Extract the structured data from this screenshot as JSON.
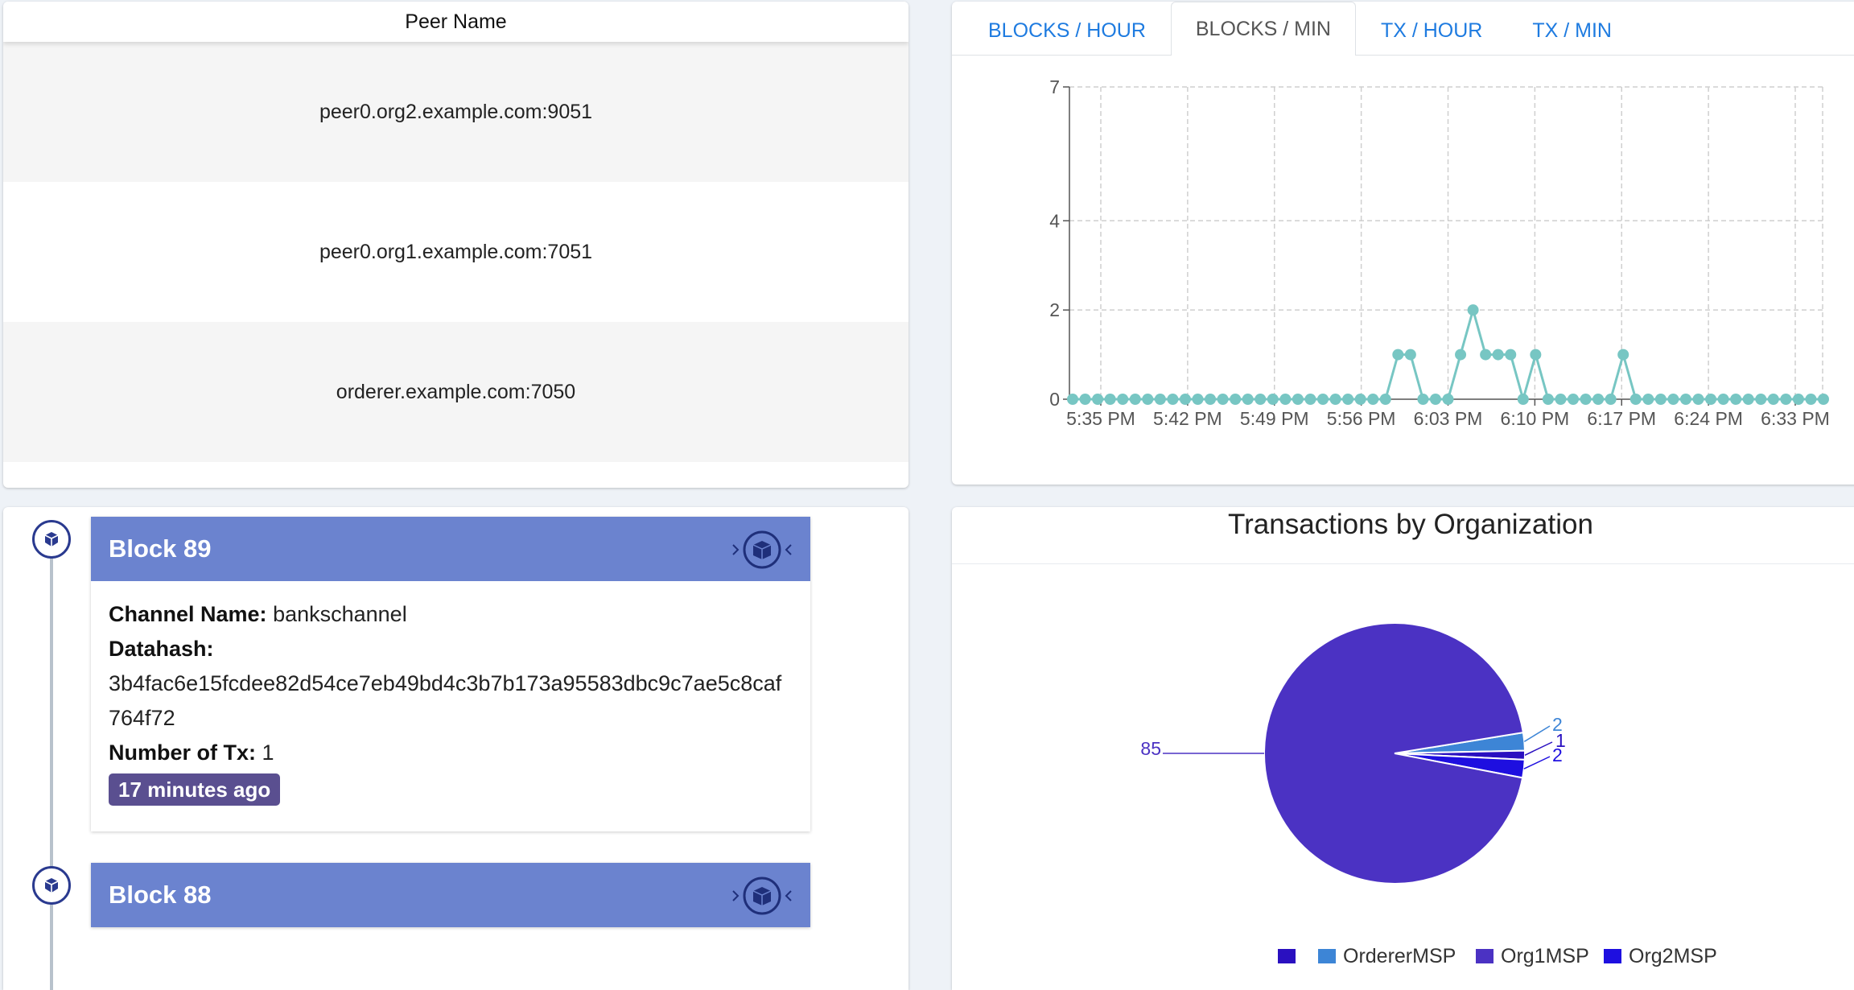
{
  "peers": {
    "header": "Peer Name",
    "rows": [
      "peer0.org2.example.com:9051",
      "peer0.org1.example.com:7051",
      "orderer.example.com:7050"
    ]
  },
  "metrics": {
    "tabs": [
      "BLOCKS / HOUR",
      "BLOCKS / MIN",
      "TX / HOUR",
      "TX / MIN"
    ],
    "active_tab": 1
  },
  "chart_data": [
    {
      "type": "line",
      "title": "",
      "xlabel": "",
      "ylabel": "",
      "ylim": [
        0,
        7
      ],
      "y_ticks": [
        0,
        2,
        4,
        7
      ],
      "x_ticks": [
        "5:35 PM",
        "5:42 PM",
        "5:49 PM",
        "5:56 PM",
        "6:03 PM",
        "6:10 PM",
        "6:17 PM",
        "6:24 PM",
        "6:33 PM"
      ],
      "grid": true,
      "color": "#77c6c3",
      "series": [
        {
          "values": [
            0,
            0,
            0,
            0,
            0,
            0,
            0,
            0,
            0,
            0,
            0,
            0,
            0,
            0,
            0,
            0,
            0,
            0,
            0,
            0,
            0,
            0,
            0,
            0,
            0,
            0,
            1,
            1,
            0,
            0,
            0,
            1,
            2,
            1,
            1,
            1,
            0,
            1,
            0,
            0,
            0,
            0,
            0,
            0,
            1,
            0,
            0,
            0,
            0,
            0,
            0,
            0,
            0,
            0,
            0,
            0,
            0,
            0,
            0,
            0,
            0
          ]
        }
      ]
    },
    {
      "type": "pie",
      "title": "Transactions by Organization",
      "slices": [
        {
          "label": "Org1MSP",
          "value": 85,
          "color": "#4b32c3"
        },
        {
          "label": "OrdererMSP",
          "value": 2,
          "color": "#3d85d6"
        },
        {
          "label": "",
          "value": 1,
          "color": "#2a10c0"
        },
        {
          "label": "Org2MSP",
          "value": 2,
          "color": "#1e0fe0"
        }
      ],
      "legend": [
        {
          "label": "",
          "color": "#2a10c0"
        },
        {
          "label": "OrdererMSP",
          "color": "#3d85d6"
        },
        {
          "label": "Org1MSP",
          "color": "#4b32c3"
        },
        {
          "label": "Org2MSP",
          "color": "#1e0fe0"
        }
      ],
      "legend_position": "bottom"
    }
  ],
  "blocks": [
    {
      "title": "Block 89",
      "channel_label": "Channel Name:",
      "channel": "bankschannel",
      "datahash_label": "Datahash:",
      "datahash": "3b4fac6e15fcdee82d54ce7eb49bd4c3b7b173a95583dbc9c7ae5c8caf764f72",
      "tx_label": "Number of Tx:",
      "tx": "1",
      "ago": "17 minutes ago"
    },
    {
      "title": "Block 88"
    }
  ],
  "icons": {
    "timeline_badge": "cube-icon",
    "block_action": "cube-icon"
  }
}
